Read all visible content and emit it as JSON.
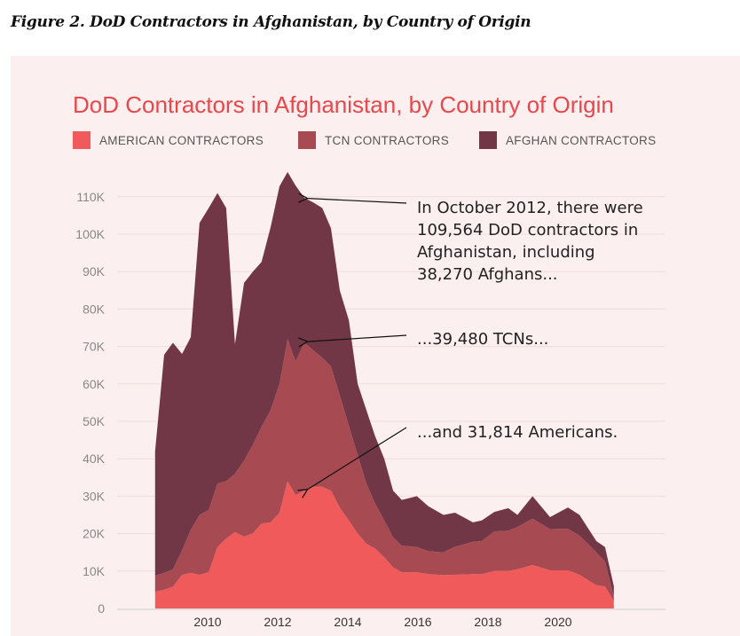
{
  "caption": "Figure 2. DoD Contractors in Afghanistan, by Country of Origin",
  "chart_data": {
    "type": "area",
    "stacked": true,
    "title": "DoD Contractors in Afghanistan, by Country of Origin",
    "xlabel": "",
    "ylabel": "",
    "xlim": [
      2008.5,
      2021.6
    ],
    "ylim": [
      0,
      118000
    ],
    "grid": true,
    "legend_position": "top",
    "y_ticks": [
      {
        "v": 0,
        "label": "0"
      },
      {
        "v": 10000,
        "label": "10K"
      },
      {
        "v": 20000,
        "label": "20K"
      },
      {
        "v": 30000,
        "label": "30K"
      },
      {
        "v": 40000,
        "label": "40K"
      },
      {
        "v": 50000,
        "label": "50K"
      },
      {
        "v": 60000,
        "label": "60K"
      },
      {
        "v": 70000,
        "label": "70K"
      },
      {
        "v": 80000,
        "label": "80K"
      },
      {
        "v": 90000,
        "label": "90K"
      },
      {
        "v": 100000,
        "label": "100K"
      },
      {
        "v": 110000,
        "label": "110K"
      }
    ],
    "x_ticks": [
      {
        "v": 2010,
        "label": "2010"
      },
      {
        "v": 2012,
        "label": "2012"
      },
      {
        "v": 2014,
        "label": "2014"
      },
      {
        "v": 2016,
        "label": "2016"
      },
      {
        "v": 2018,
        "label": "2018"
      },
      {
        "v": 2020,
        "label": "2020"
      }
    ],
    "x": [
      2008.5,
      2008.76,
      2009.01,
      2009.27,
      2009.52,
      2009.77,
      2010.03,
      2010.28,
      2010.53,
      2010.78,
      2011.04,
      2011.29,
      2011.54,
      2011.8,
      2012.05,
      2012.28,
      2012.51,
      2012.76,
      2013.01,
      2013.27,
      2013.52,
      2013.77,
      2014.03,
      2014.28,
      2014.53,
      2014.78,
      2015.04,
      2015.29,
      2015.54,
      2015.97,
      2016.3,
      2016.73,
      2017.06,
      2017.57,
      2017.82,
      2018.18,
      2018.58,
      2018.84,
      2019.27,
      2019.77,
      2020.28,
      2020.61,
      2021.09,
      2021.34,
      2021.59
    ],
    "series": [
      {
        "name": "AMERICAN CONTRACTORS",
        "color": "#f05a5b",
        "values": [
          4500,
          5000,
          5800,
          9000,
          9500,
          9000,
          9700,
          16400,
          18700,
          20400,
          19200,
          20100,
          22700,
          23000,
          25600,
          34000,
          30300,
          31500,
          32600,
          32500,
          31500,
          27000,
          23500,
          20000,
          17300,
          16000,
          13700,
          11000,
          9700,
          9700,
          9200,
          8900,
          9000,
          9200,
          9200,
          10000,
          10000,
          10500,
          11600,
          10200,
          10200,
          9000,
          6200,
          5900,
          2000
        ]
      },
      {
        "name": "TCN CONTRACTORS",
        "color": "#a84a52",
        "values": [
          4300,
          4500,
          4700,
          6500,
          11500,
          16000,
          16600,
          17000,
          15300,
          15600,
          20300,
          23700,
          25800,
          30000,
          34400,
          38000,
          35700,
          39500,
          36400,
          34500,
          33200,
          30000,
          25300,
          21000,
          16100,
          12000,
          9800,
          8000,
          7100,
          6700,
          6100,
          6100,
          7500,
          8600,
          8800,
          10600,
          10800,
          11300,
          12400,
          11000,
          11100,
          10500,
          8800,
          6700,
          1000
        ]
      },
      {
        "name": "AFGHAN CONTRACTORS",
        "color": "#723746",
        "values": [
          33200,
          58300,
          60500,
          52500,
          51500,
          78000,
          80700,
          77600,
          73000,
          34600,
          47500,
          46200,
          44100,
          49000,
          52800,
          44600,
          47000,
          38700,
          39500,
          40000,
          36900,
          28000,
          28200,
          19000,
          19600,
          18000,
          16500,
          12500,
          12200,
          13600,
          12000,
          10000,
          9100,
          5200,
          5500,
          5200,
          6000,
          3200,
          6000,
          3200,
          5700,
          5500,
          3000,
          3800,
          3000
        ]
      }
    ],
    "annotations": [
      {
        "text": [
          "In October 2012, there were",
          "109,564 DoD contractors in",
          "Afghanistan, including",
          "38,270 Afghans..."
        ],
        "target": [
          2012.85,
          109564
        ]
      },
      {
        "text": [
          "...39,480 TCNs..."
        ],
        "target": [
          2012.85,
          71290
        ]
      },
      {
        "text": [
          "...and 31,814 Americans."
        ],
        "target": [
          2012.85,
          31814
        ]
      }
    ]
  }
}
